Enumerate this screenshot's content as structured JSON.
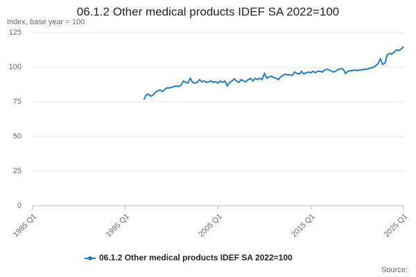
{
  "chart_data": {
    "type": "line",
    "title": "06.1.2 Other medical products IDEF SA 2022=100",
    "subtitle": "Index, base year = 100",
    "source": "Source:",
    "categories": [
      "1985 Q1",
      null,
      null,
      null,
      null,
      null,
      null,
      null,
      null,
      null,
      null,
      null,
      null,
      null,
      null,
      null,
      null,
      null,
      null,
      null,
      null,
      null,
      null,
      null,
      null,
      null,
      null,
      null,
      null,
      null,
      null,
      null,
      null,
      null,
      null,
      null,
      null,
      null,
      null,
      null,
      "1995 Q1",
      null,
      null,
      null,
      null,
      null,
      null,
      null,
      null,
      null,
      null,
      null,
      null,
      null,
      null,
      null,
      null,
      null,
      null,
      null,
      null,
      null,
      null,
      null,
      null,
      null,
      null,
      null,
      null,
      null,
      null,
      null,
      null,
      null,
      null,
      null,
      null,
      null,
      null,
      null,
      "2005 Q1",
      null,
      null,
      null,
      null,
      null,
      null,
      null,
      null,
      null,
      null,
      null,
      null,
      null,
      null,
      null,
      null,
      null,
      null,
      null,
      null,
      null,
      null,
      null,
      null,
      null,
      null,
      null,
      null,
      null,
      null,
      null,
      null,
      null,
      null,
      null,
      null,
      null,
      null,
      null,
      "2015 Q1",
      null,
      null,
      null,
      null,
      null,
      null,
      null,
      null,
      null,
      null,
      null,
      null,
      null,
      null,
      null,
      null,
      null,
      null,
      null,
      null,
      null,
      null,
      null,
      null,
      null,
      null,
      null,
      null,
      null,
      null,
      null,
      null,
      null,
      null,
      null,
      null,
      null,
      null,
      null,
      "2025 Q1"
    ],
    "series": [
      {
        "name": "06.1.2 Other medical products IDEF SA 2022=100",
        "color": "#1f7bbf",
        "values": [
          null,
          null,
          null,
          null,
          null,
          null,
          null,
          null,
          null,
          null,
          null,
          null,
          null,
          null,
          null,
          null,
          null,
          null,
          null,
          null,
          null,
          null,
          null,
          null,
          null,
          null,
          null,
          null,
          null,
          null,
          null,
          null,
          null,
          null,
          null,
          null,
          null,
          null,
          null,
          null,
          null,
          null,
          null,
          null,
          null,
          null,
          null,
          null,
          76.5,
          80,
          80.5,
          79,
          80,
          82,
          83,
          83.5,
          82.5,
          84,
          85,
          85,
          85.5,
          86,
          86.5,
          86,
          87,
          90,
          89,
          88.5,
          92,
          89,
          88.5,
          89,
          91,
          89.5,
          90,
          89,
          89.5,
          90,
          89,
          89.5,
          88.5,
          90,
          89,
          90,
          86.5,
          89,
          90,
          91.5,
          90,
          89,
          91,
          90,
          89.5,
          91,
          92,
          90,
          92,
          91,
          92,
          91,
          95.5,
          92,
          93,
          93.5,
          92.5,
          92,
          91,
          93,
          94,
          95,
          94.5,
          94.5,
          94,
          96.5,
          95.5,
          95,
          97,
          95,
          96,
          96.5,
          96,
          97,
          96,
          97,
          97,
          96.5,
          98,
          98.5,
          98,
          97,
          96.5,
          97.5,
          98.5,
          99,
          98.5,
          95.5,
          97,
          97.5,
          97.5,
          98,
          97.5,
          98,
          98,
          98.5,
          98.5,
          99,
          99.5,
          100,
          101,
          102.5,
          106,
          102,
          103,
          109,
          110,
          109.5,
          111,
          112.5,
          112,
          113,
          115
        ]
      }
    ],
    "ylim": [
      0,
      125
    ],
    "yticks": [
      0,
      25,
      50,
      75,
      100,
      125
    ],
    "grid": true
  }
}
